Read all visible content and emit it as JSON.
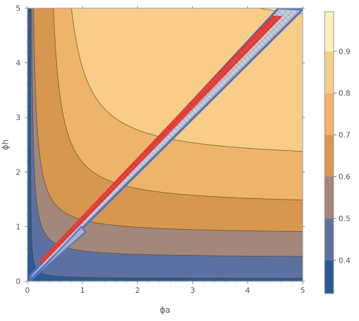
{
  "chart_data": {
    "type": "contour",
    "xlabel": "ϕa",
    "ylabel": "ϕh",
    "xlim": [
      0,
      5
    ],
    "ylim": [
      0,
      5
    ],
    "x_ticks": [
      "0",
      "1",
      "2",
      "3",
      "4",
      "5"
    ],
    "y_ticks": [
      "0",
      "1",
      "2",
      "3",
      "4",
      "5"
    ],
    "contour_levels": [
      0.3,
      0.4,
      0.5,
      0.6,
      0.7,
      0.8,
      0.9
    ],
    "legend_ticks": [
      "0.4",
      "0.5",
      "0.6",
      "0.7",
      "0.8",
      "0.9"
    ],
    "legend_placement": "right",
    "contour_asymptotes": [
      {
        "level": 0.4,
        "x": 0.05,
        "y": 0.05
      },
      {
        "level": 0.5,
        "x": 0.05,
        "y": 0.43
      },
      {
        "level": 0.6,
        "x": 0.05,
        "y": 0.86
      },
      {
        "level": 0.7,
        "x": 0.32,
        "y": 1.37
      },
      {
        "level": 0.8,
        "x": 0.48,
        "y": 2.18
      },
      {
        "level": 0.9,
        "x": 1.0,
        "y": 4.5
      }
    ],
    "band_colors": [
      "#2b5a94",
      "#5d71a0",
      "#a2877a",
      "#d8974f",
      "#eeb46a",
      "#f7cd87",
      "#fdf0be"
    ],
    "diagonal_band": {
      "outer_x_lower": [
        0.05,
        5.0
      ],
      "outer_y_lower": [
        0.02,
        4.96
      ],
      "outer_y_upper": [
        0.1,
        5.0
      ],
      "hatched_start_x": 0.25,
      "outline_color": "#5472c0",
      "hatch_fill_color": "#c9ccd6",
      "inner_stripe_color": "#f0423a"
    }
  }
}
